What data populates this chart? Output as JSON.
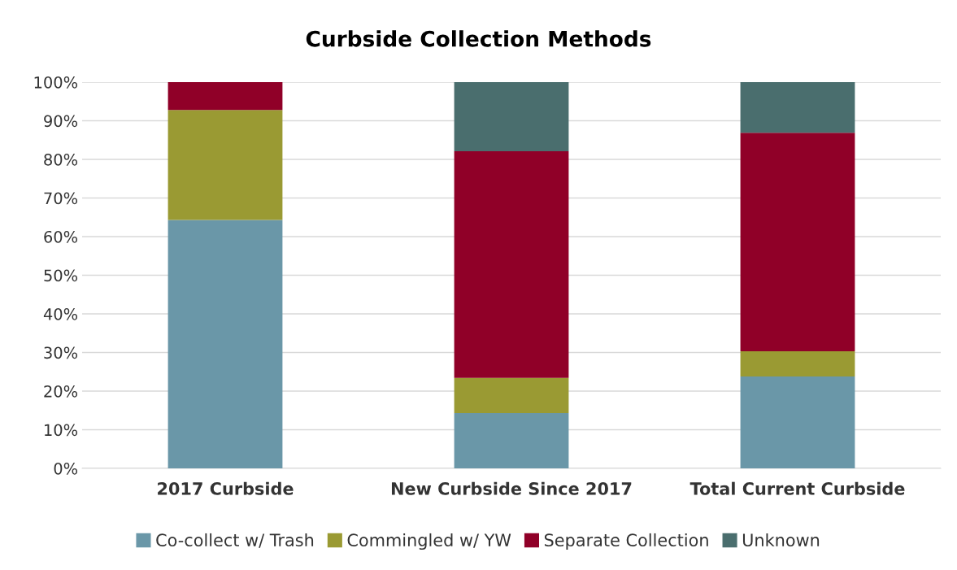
{
  "chart_data": {
    "type": "bar",
    "title": "Curbside Collection Methods",
    "stacked": true,
    "categories": [
      "2017 Curbside",
      "New Curbside Since 2017",
      "Total Current Curbside"
    ],
    "series": [
      {
        "name": "Co-collect w/ Trash",
        "color": "#6a97a8",
        "values": [
          64.3,
          14.3,
          23.8
        ]
      },
      {
        "name": "Commingled w/ YW",
        "color": "#9a9a33",
        "values": [
          28.5,
          9.1,
          6.5
        ]
      },
      {
        "name": "Separate Collection",
        "color": "#900028",
        "values": [
          7.2,
          58.7,
          56.6
        ]
      },
      {
        "name": "Unknown",
        "color": "#4a6e6e",
        "values": [
          0,
          17.9,
          13.1
        ]
      }
    ],
    "ylim": [
      0,
      100
    ],
    "yticks": [
      {
        "value": 0,
        "label": "0%"
      },
      {
        "value": 10,
        "label": "10%"
      },
      {
        "value": 20,
        "label": "20%"
      },
      {
        "value": 30,
        "label": "30%"
      },
      {
        "value": 40,
        "label": "40%"
      },
      {
        "value": 50,
        "label": "50%"
      },
      {
        "value": 60,
        "label": "60%"
      },
      {
        "value": 70,
        "label": "70%"
      },
      {
        "value": 80,
        "label": "80%"
      },
      {
        "value": 90,
        "label": "90%"
      },
      {
        "value": 100,
        "label": "100%"
      }
    ],
    "grid": "y",
    "legend": "bottom"
  }
}
